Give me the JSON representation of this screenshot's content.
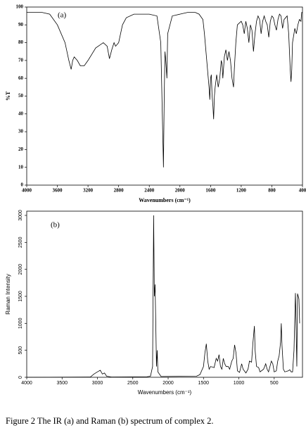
{
  "chart_data": [
    {
      "type": "line",
      "annotation": "(a)",
      "x_label": "Wavenumbers (cm⁻¹)",
      "y_label": "%T",
      "xlim": [
        4000,
        400
      ],
      "ylim": [
        0,
        100
      ],
      "xticks": [
        4000,
        3600,
        3200,
        2800,
        2400,
        2000,
        1600,
        1200,
        800,
        400
      ],
      "yticks": [
        0,
        10,
        20,
        30,
        40,
        50,
        60,
        70,
        80,
        90,
        100
      ],
      "x": [
        4000,
        3800,
        3700,
        3600,
        3500,
        3450,
        3420,
        3400,
        3380,
        3340,
        3300,
        3250,
        3200,
        3100,
        3000,
        2950,
        2920,
        2890,
        2860,
        2840,
        2800,
        2750,
        2700,
        2600,
        2500,
        2400,
        2300,
        2250,
        2230,
        2215,
        2205,
        2195,
        2185,
        2170,
        2160,
        2100,
        2000,
        1900,
        1800,
        1750,
        1700,
        1680,
        1650,
        1620,
        1610,
        1600,
        1590,
        1580,
        1570,
        1560,
        1550,
        1540,
        1520,
        1500,
        1480,
        1460,
        1450,
        1440,
        1420,
        1400,
        1380,
        1360,
        1340,
        1320,
        1300,
        1290,
        1270,
        1250,
        1200,
        1180,
        1160,
        1140,
        1120,
        1100,
        1080,
        1060,
        1040,
        1020,
        1000,
        980,
        960,
        940,
        920,
        900,
        880,
        860,
        840,
        820,
        800,
        780,
        760,
        740,
        720,
        700,
        680,
        660,
        640,
        620,
        600,
        580,
        560,
        550,
        540,
        530,
        500,
        480,
        460,
        440,
        420,
        410,
        400
      ],
      "series": [
        {
          "color": "#000000",
          "values": [
            97,
            97,
            96,
            90,
            80,
            70,
            65,
            70,
            72,
            70,
            67,
            67,
            70,
            77,
            80,
            78,
            71,
            76,
            80,
            78,
            80,
            90,
            94,
            96,
            96,
            96,
            95,
            80,
            40,
            10,
            50,
            75,
            70,
            60,
            85,
            95,
            96,
            97,
            97,
            96,
            93,
            85,
            70,
            55,
            48,
            60,
            62,
            50,
            45,
            37,
            50,
            55,
            62,
            55,
            60,
            70,
            68,
            60,
            72,
            76,
            70,
            75,
            70,
            60,
            55,
            65,
            80,
            90,
            92,
            90,
            85,
            92,
            88,
            80,
            90,
            87,
            75,
            85,
            92,
            95,
            93,
            85,
            92,
            95,
            92,
            90,
            83,
            92,
            95,
            94,
            90,
            87,
            93,
            96,
            95,
            88,
            93,
            94,
            95,
            85,
            65,
            58,
            65,
            80,
            88,
            85,
            90,
            93,
            92,
            97,
            97
          ]
        }
      ]
    },
    {
      "type": "line",
      "annotation": "(b)",
      "x_label": "Wavenumbers (cm⁻¹)",
      "y_label": "Raman Intensity",
      "xlim": [
        4000,
        100
      ],
      "ylim": [
        0,
        3000
      ],
      "xticks": [
        4000,
        3500,
        3000,
        2500,
        2000,
        1500,
        1000,
        500
      ],
      "yticks": [
        0,
        500,
        1000,
        1500,
        2000,
        2500,
        3000
      ],
      "x": [
        4000,
        3100,
        3050,
        3000,
        2960,
        2930,
        2900,
        2870,
        2800,
        2300,
        2250,
        2220,
        2205,
        2195,
        2185,
        2175,
        2165,
        2155,
        2145,
        2100,
        1600,
        1550,
        1500,
        1480,
        1460,
        1440,
        1420,
        1400,
        1350,
        1320,
        1300,
        1280,
        1260,
        1240,
        1220,
        1200,
        1180,
        1150,
        1130,
        1100,
        1080,
        1060,
        1040,
        1020,
        990,
        960,
        940,
        900,
        870,
        850,
        820,
        800,
        780,
        770,
        750,
        720,
        700,
        650,
        620,
        600,
        580,
        560,
        540,
        520,
        500,
        470,
        450,
        430,
        410,
        400,
        390,
        370,
        350,
        300,
        280,
        260,
        240,
        220,
        200,
        190,
        180,
        170,
        160,
        150,
        140
      ],
      "series": [
        {
          "color": "#000000",
          "values": [
            0,
            5,
            60,
            100,
            130,
            60,
            80,
            20,
            5,
            10,
            20,
            200,
            3000,
            1500,
            1720,
            1000,
            200,
            500,
            100,
            15,
            20,
            50,
            200,
            450,
            620,
            300,
            150,
            200,
            180,
            350,
            300,
            420,
            200,
            150,
            350,
            250,
            200,
            200,
            150,
            300,
            350,
            600,
            450,
            120,
            90,
            250,
            150,
            80,
            150,
            300,
            280,
            650,
            950,
            500,
            200,
            180,
            100,
            150,
            250,
            150,
            100,
            200,
            300,
            250,
            100,
            120,
            300,
            400,
            650,
            1000,
            600,
            150,
            100,
            120,
            140,
            100,
            100,
            500,
            1560,
            900,
            200,
            1550,
            1500,
            1450,
            1000
          ]
        }
      ]
    }
  ],
  "caption": "Figure 2  The IR (a) and Raman (b) spectrum of complex 2."
}
